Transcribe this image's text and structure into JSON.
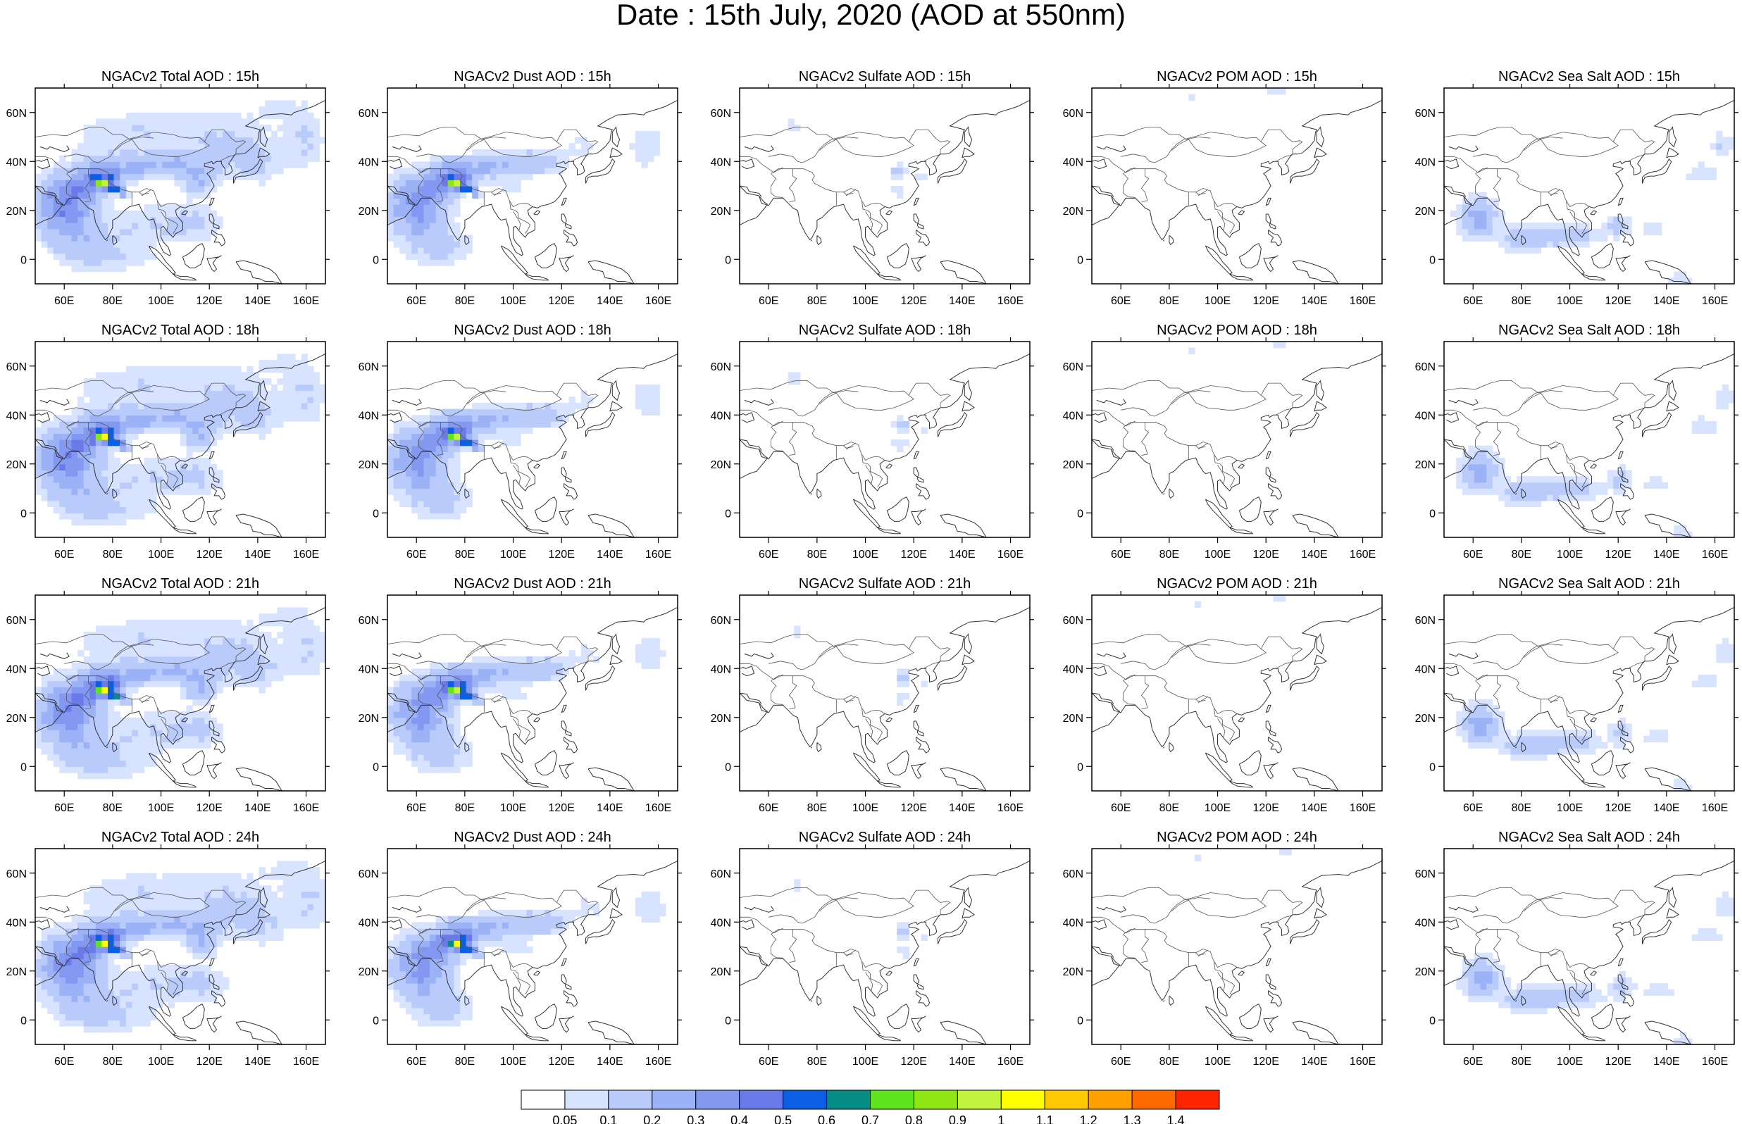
{
  "title": "Date : 15th July, 2020 (AOD at 550nm)",
  "chart_data": {
    "type": "heatmap",
    "grid": false,
    "x_ticks": [
      "60E",
      "80E",
      "100E",
      "120E",
      "140E",
      "160E"
    ],
    "y_ticks": [
      "60N",
      "40N",
      "20N",
      "0"
    ],
    "xlim": [
      48,
      168
    ],
    "ylim": [
      -10,
      70
    ],
    "panels": [
      {
        "title": "NGACv2 Total AOD : 15h",
        "species": "total",
        "hour": 15
      },
      {
        "title": "NGACv2 Dust AOD : 15h",
        "species": "dust",
        "hour": 15
      },
      {
        "title": "NGACv2 Sulfate AOD : 15h",
        "species": "sulfate",
        "hour": 15
      },
      {
        "title": "NGACv2 POM AOD : 15h",
        "species": "pom",
        "hour": 15
      },
      {
        "title": "NGACv2 Sea Salt AOD : 15h",
        "species": "seasalt",
        "hour": 15
      },
      {
        "title": "NGACv2 Total AOD : 18h",
        "species": "total",
        "hour": 18
      },
      {
        "title": "NGACv2 Dust AOD : 18h",
        "species": "dust",
        "hour": 18
      },
      {
        "title": "NGACv2 Sulfate AOD : 18h",
        "species": "sulfate",
        "hour": 18
      },
      {
        "title": "NGACv2 POM AOD : 18h",
        "species": "pom",
        "hour": 18
      },
      {
        "title": "NGACv2 Sea Salt AOD : 18h",
        "species": "seasalt",
        "hour": 18
      },
      {
        "title": "NGACv2 Total AOD : 21h",
        "species": "total",
        "hour": 21
      },
      {
        "title": "NGACv2 Dust AOD : 21h",
        "species": "dust",
        "hour": 21
      },
      {
        "title": "NGACv2 Sulfate AOD : 21h",
        "species": "sulfate",
        "hour": 21
      },
      {
        "title": "NGACv2 POM AOD : 21h",
        "species": "pom",
        "hour": 21
      },
      {
        "title": "NGACv2 Sea Salt AOD : 21h",
        "species": "seasalt",
        "hour": 21
      },
      {
        "title": "NGACv2 Total AOD : 24h",
        "species": "total",
        "hour": 24
      },
      {
        "title": "NGACv2 Dust AOD : 24h",
        "species": "dust",
        "hour": 24
      },
      {
        "title": "NGACv2 Sulfate AOD : 24h",
        "species": "sulfate",
        "hour": 24
      },
      {
        "title": "NGACv2 POM AOD : 24h",
        "species": "pom",
        "hour": 24
      },
      {
        "title": "NGACv2 Sea Salt  AOD : 24h",
        "species": "seasalt",
        "hour": 24
      }
    ],
    "colorbar": {
      "labels": [
        "0.05",
        "0.1",
        "0.2",
        "0.3",
        "0.4",
        "0.5",
        "0.6",
        "0.7",
        "0.8",
        "0.9",
        "1",
        "1.1",
        "1.2",
        "1.3",
        "1.4"
      ],
      "colors": [
        "#ffffff",
        "#d7e3ff",
        "#b9cbfb",
        "#9cb2f7",
        "#8298f1",
        "#6a7be9",
        "#0a5fe5",
        "#058c86",
        "#5fe41e",
        "#8fe615",
        "#c2f33d",
        "#ffff00",
        "#ffc800",
        "#ffa000",
        "#ff6a00",
        "#ff2400"
      ]
    }
  }
}
